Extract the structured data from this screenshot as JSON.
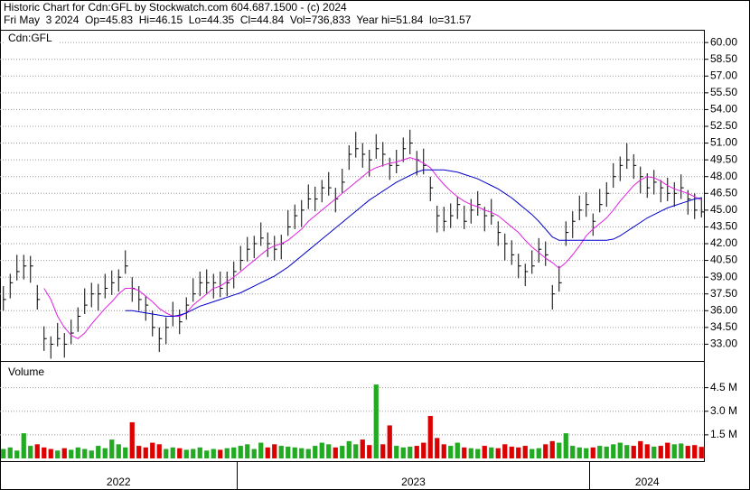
{
  "header": {
    "title": "Historic Chart for Cdn:GFL by Stockwatch.com 604.687.1500 - (c) 2024",
    "quote": "Fri May  3 2024  Op=45.83  Hi=46.15  Lo=44.35  Cl=44.84  Vol=736,833  Year hi=51.84  lo=31.57"
  },
  "chart_data": {
    "type": "ohlc",
    "symbol": "Cdn:GFL",
    "grid": true,
    "bar_color": "#000000",
    "categories": [
      "2022",
      "2022",
      "2022",
      "2022",
      "2022",
      "2022",
      "2022",
      "2022",
      "2022",
      "2022",
      "2022",
      "2022",
      "2022",
      "2022",
      "2022",
      "2022",
      "2022",
      "2022",
      "2022",
      "2022",
      "2022",
      "2022",
      "2022",
      "2022",
      "2022",
      "2022",
      "2022",
      "2022",
      "2022",
      "2022",
      "2022",
      "2022",
      "2022",
      "2022",
      "2022",
      "2023",
      "2023",
      "2023",
      "2023",
      "2023",
      "2023",
      "2023",
      "2023",
      "2023",
      "2023",
      "2023",
      "2023",
      "2023",
      "2023",
      "2023",
      "2023",
      "2023",
      "2023",
      "2023",
      "2023",
      "2023",
      "2023",
      "2023",
      "2023",
      "2023",
      "2023",
      "2023",
      "2023",
      "2023",
      "2023",
      "2023",
      "2023",
      "2023",
      "2023",
      "2023",
      "2023",
      "2023",
      "2023",
      "2023",
      "2023",
      "2023",
      "2023",
      "2023",
      "2023",
      "2023",
      "2023",
      "2023",
      "2023",
      "2023",
      "2023",
      "2023",
      "2023",
      "2024",
      "2024",
      "2024",
      "2024",
      "2024",
      "2024",
      "2024",
      "2024",
      "2024",
      "2024",
      "2024",
      "2024",
      "2024",
      "2024",
      "2024",
      "2024",
      "2024"
    ],
    "high": [
      38.2,
      39.3,
      41,
      41,
      40.9,
      38.3,
      34.6,
      33.7,
      34.9,
      34,
      35.2,
      36.3,
      38,
      38.5,
      38.4,
      39.3,
      39.6,
      39.7,
      41.4,
      39,
      38.2,
      37.3,
      36,
      34.5,
      35.4,
      36.8,
      36.1,
      37.2,
      38.9,
      39.5,
      39.7,
      39.3,
      39.5,
      39.5,
      40.4,
      41.8,
      42.6,
      42.7,
      43.9,
      43,
      42.7,
      42.8,
      45,
      45.5,
      45.9,
      47.3,
      47.1,
      47.7,
      48.4,
      47,
      48.7,
      50.8,
      52,
      51,
      50.4,
      51.8,
      51.1,
      49.7,
      50.4,
      51.5,
      52.2,
      50.3,
      50.5,
      48,
      45.4,
      45.3,
      45.6,
      46.2,
      45.4,
      46,
      46.7,
      45.3,
      46,
      44,
      42.9,
      42.3,
      41.1,
      40.2,
      41.4,
      42.5,
      42.2,
      38.3,
      40,
      44,
      44.9,
      46.3,
      46.6,
      44.7,
      46.9,
      47.5,
      49.2,
      49.8,
      51,
      50,
      48.9,
      48.3,
      48.6,
      47.7,
      47.9,
      47.5,
      48.2,
      46.8,
      46.5,
      46.15
    ],
    "low": [
      36,
      37.1,
      38.7,
      38.8,
      38.5,
      36.1,
      32.4,
      31.7,
      32.8,
      31.8,
      33,
      34.1,
      35.7,
      36.3,
      36,
      37.1,
      37.4,
      37.7,
      39.3,
      36.8,
      36,
      35.1,
      33.7,
      32.3,
      33,
      34.6,
      33.9,
      35.2,
      36.8,
      37.3,
      37.5,
      37.1,
      37.2,
      37.3,
      38,
      39.6,
      40.4,
      40.7,
      41.8,
      40.8,
      40.5,
      40.6,
      42.7,
      43.3,
      43.5,
      45.1,
      44.9,
      45.7,
      46.3,
      44.8,
      46.5,
      48.6,
      49.7,
      48.8,
      48,
      49.6,
      48.9,
      47.7,
      48.3,
      49.3,
      50,
      48.1,
      48.2,
      45.8,
      43,
      43.1,
      43.4,
      44.2,
      43.3,
      43.8,
      44.5,
      43.1,
      43.7,
      41.8,
      40.5,
      40.1,
      38.9,
      38.2,
      39.3,
      40.3,
      40,
      36.1,
      37.7,
      41.8,
      42.5,
      44.1,
      44.4,
      42.7,
      44.8,
      45.3,
      47,
      47.6,
      48.7,
      47.8,
      46.5,
      46.1,
      46.4,
      45.7,
      45.8,
      45.3,
      46,
      44.6,
      44.2,
      44.35
    ],
    "close": [
      37,
      38.5,
      39.5,
      40,
      40,
      37,
      33.5,
      33,
      33.5,
      33,
      34,
      35.5,
      36.5,
      37.5,
      37.5,
      38,
      38.5,
      39,
      40,
      38,
      37,
      36.5,
      34.5,
      33.5,
      34.5,
      35.5,
      35,
      36.5,
      37.5,
      38.5,
      38.5,
      38.5,
      38,
      38.5,
      39.5,
      40.5,
      41.5,
      42,
      42.5,
      42,
      41.5,
      42,
      43.5,
      44.5,
      45,
      46,
      46,
      47,
      47,
      46,
      47.5,
      50,
      50.5,
      50,
      49.5,
      50.5,
      50,
      49,
      49,
      50.5,
      51,
      49.5,
      49,
      47,
      44.5,
      44,
      44.5,
      45.5,
      44,
      45,
      45.5,
      44.5,
      44.5,
      43,
      42,
      41,
      40,
      39.5,
      40,
      41.5,
      41,
      37.5,
      38.5,
      43,
      44,
      45,
      45.5,
      44,
      45.5,
      46.5,
      48,
      49,
      49.5,
      49,
      48,
      47,
      47.5,
      47,
      46.5,
      46.5,
      47,
      46,
      45,
      44.84
    ],
    "series": [
      {
        "color": "#e020e0",
        "values": [
          null,
          null,
          null,
          null,
          null,
          null,
          38,
          37,
          35.5,
          34.5,
          33.8,
          33.5,
          34,
          34.8,
          35.5,
          36.2,
          36.8,
          37.5,
          38,
          38,
          37.8,
          37.3,
          36.8,
          36.2,
          35.8,
          35.5,
          35.5,
          35.8,
          36.5,
          37,
          37.5,
          38,
          38.2,
          38.6,
          39,
          39.5,
          40,
          40.5,
          41,
          41.5,
          41.8,
          42,
          42.3,
          42.8,
          43.3,
          44,
          44.5,
          45,
          45.5,
          46,
          46.5,
          47,
          47.5,
          48,
          48.5,
          48.8,
          49,
          49.2,
          49.3,
          49.5,
          49.7,
          49.5,
          49.2,
          48.8,
          48,
          47.3,
          46.7,
          46.2,
          45.8,
          45.5,
          45.3,
          45,
          44.8,
          44.5,
          44,
          43.5,
          43,
          42.3,
          41.7,
          41.2,
          40.7,
          40.3,
          39.8,
          40.3,
          41,
          41.8,
          42.7,
          43.3,
          43.8,
          44.3,
          45,
          45.8,
          46.5,
          47.2,
          47.7,
          48,
          47.9,
          47.6,
          47.2,
          46.9,
          46.7,
          46.5,
          46.2,
          45.9
        ]
      },
      {
        "color": "#0000cc",
        "values": [
          null,
          null,
          null,
          null,
          null,
          null,
          null,
          null,
          null,
          null,
          null,
          null,
          null,
          null,
          null,
          null,
          null,
          null,
          36,
          36,
          35.9,
          35.8,
          35.7,
          35.6,
          35.5,
          35.5,
          35.6,
          35.8,
          36.1,
          36.4,
          36.6,
          36.8,
          37,
          37.2,
          37.4,
          37.6,
          37.9,
          38.2,
          38.5,
          38.8,
          39.1,
          39.5,
          39.9,
          40.4,
          40.9,
          41.4,
          41.9,
          42.4,
          42.9,
          43.4,
          43.9,
          44.4,
          44.9,
          45.4,
          45.9,
          46.3,
          46.7,
          47.1,
          47.5,
          47.8,
          48.1,
          48.4,
          48.6,
          48.6,
          48.6,
          48.6,
          48.5,
          48.4,
          48.2,
          48,
          47.8,
          47.5,
          47.2,
          46.9,
          46.5,
          46.1,
          45.6,
          45.1,
          44.6,
          44,
          43.3,
          42.6,
          42.3,
          42.3,
          42.3,
          42.3,
          42.3,
          42.3,
          42.3,
          42.3,
          42.4,
          42.7,
          43.1,
          43.5,
          43.9,
          44.3,
          44.6,
          44.9,
          45.2,
          45.4,
          45.6,
          45.8,
          46,
          46.1
        ]
      }
    ],
    "ylim": [
      31.5,
      60.9
    ],
    "yticks": [
      {
        "value": 33,
        "label": "33.00"
      },
      {
        "value": 34.5,
        "label": "34.50"
      },
      {
        "value": 36,
        "label": "36.00"
      },
      {
        "value": 37.5,
        "label": "37.50"
      },
      {
        "value": 39,
        "label": "39.00"
      },
      {
        "value": 40.5,
        "label": "40.50"
      },
      {
        "value": 42,
        "label": "42.00"
      },
      {
        "value": 43.5,
        "label": "43.50"
      },
      {
        "value": 45,
        "label": "45.00"
      },
      {
        "value": 46.5,
        "label": "46.50"
      },
      {
        "value": 48,
        "label": "48.00"
      },
      {
        "value": 49.5,
        "label": "49.50"
      },
      {
        "value": 51,
        "label": "51.00"
      },
      {
        "value": 52.5,
        "label": "52.50"
      },
      {
        "value": 54,
        "label": "54.00"
      },
      {
        "value": 55.5,
        "label": "55.50"
      },
      {
        "value": 57,
        "label": "57.00"
      },
      {
        "value": 58.5,
        "label": "58.50"
      },
      {
        "value": 60,
        "label": "60.00"
      }
    ],
    "volume": {
      "title": "Volume",
      "up_color": "#22aa22",
      "down_color": "#dd0000",
      "values": [
        600000,
        700000,
        500000,
        1600000,
        800000,
        900000,
        700000,
        600000,
        500000,
        650000,
        550000,
        700000,
        600000,
        500000,
        800000,
        650000,
        1200000,
        900000,
        700000,
        2300000,
        800000,
        700000,
        1000000,
        900000,
        600000,
        700000,
        650000,
        550000,
        600000,
        700000,
        500000,
        600000,
        550000,
        650000,
        700000,
        800000,
        900000,
        600000,
        1000000,
        700000,
        900000,
        800000,
        750000,
        700000,
        650000,
        600000,
        800000,
        1000000,
        900000,
        700000,
        800000,
        1100000,
        900000,
        1200000,
        850000,
        4700000,
        900000,
        2100000,
        800000,
        700000,
        750000,
        800000,
        1000000,
        2700000,
        1300000,
        900000,
        800000,
        1000000,
        700000,
        650000,
        600000,
        800000,
        700000,
        650000,
        900000,
        750000,
        700000,
        800000,
        600000,
        650000,
        900000,
        1100000,
        1000000,
        1600000,
        800000,
        700000,
        650000,
        700000,
        800000,
        750000,
        900000,
        1000000,
        850000,
        800000,
        1100000,
        900000,
        750000,
        800000,
        1000000,
        900000,
        950000,
        800000,
        850000,
        736833
      ],
      "ylim": [
        0,
        6200000
      ],
      "yticks": [
        {
          "value": 1500000,
          "label": "1.5 M"
        },
        {
          "value": 3000000,
          "label": "3.0 M"
        },
        {
          "value": 4500000,
          "label": "4.5 M"
        }
      ]
    }
  }
}
